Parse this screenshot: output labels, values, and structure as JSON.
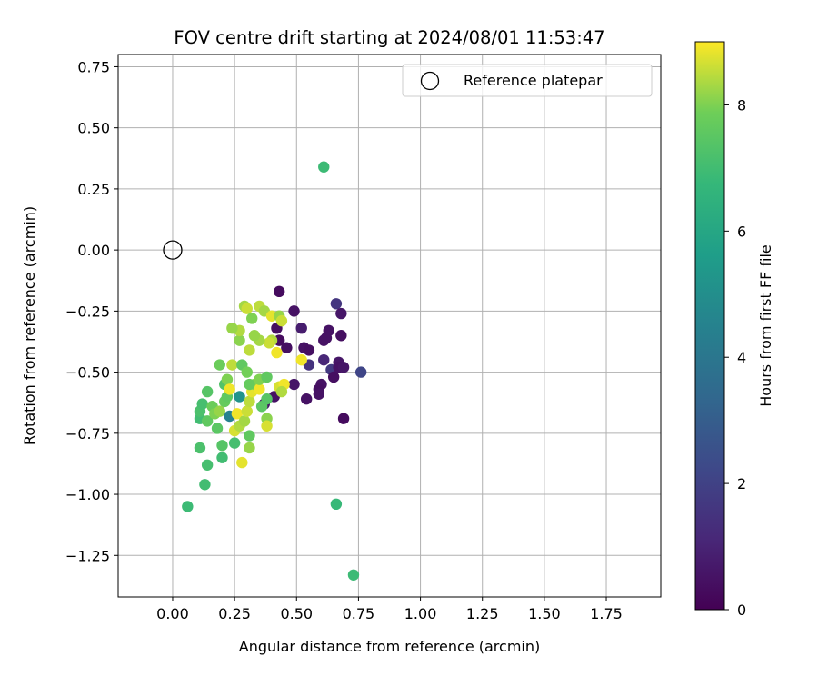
{
  "chart_data": {
    "type": "scatter",
    "title": "FOV centre drift starting at 2024/08/01 11:53:47",
    "xlabel": "Angular distance from reference (arcmin)",
    "ylabel": "Rotation from reference (arcmin)",
    "xlim": [
      -0.22,
      1.97
    ],
    "ylim": [
      -1.42,
      0.8
    ],
    "xticks": [
      0.0,
      0.25,
      0.5,
      0.75,
      1.0,
      1.25,
      1.5,
      1.75
    ],
    "xtick_labels": [
      "0.00",
      "0.25",
      "0.50",
      "0.75",
      "1.00",
      "1.25",
      "1.50",
      "1.75"
    ],
    "yticks": [
      0.75,
      0.5,
      0.25,
      0.0,
      -0.25,
      -0.5,
      -0.75,
      -1.0,
      -1.25
    ],
    "ytick_labels": [
      "0.75",
      "0.50",
      "0.25",
      "0.00",
      "−0.25",
      "−0.50",
      "−0.75",
      "−1.00",
      "−1.25"
    ],
    "grid": true,
    "legend": {
      "position": "top-right",
      "entries": [
        "Reference platepar"
      ]
    },
    "reference_point": {
      "x": 0.0,
      "y": 0.0,
      "label": "Reference platepar"
    },
    "colorbar": {
      "label": "Hours from first FF file",
      "range": [
        0,
        9
      ],
      "ticks": [
        0,
        2,
        4,
        6,
        8
      ],
      "tick_labels": [
        "0",
        "2",
        "4",
        "6",
        "8"
      ],
      "colormap": "viridis"
    },
    "points": [
      [
        0.43,
        -0.17,
        0.3
      ],
      [
        0.49,
        -0.25,
        0.5
      ],
      [
        0.66,
        -0.22,
        1.6
      ],
      [
        0.68,
        -0.26,
        0.6
      ],
      [
        0.42,
        -0.32,
        0.4
      ],
      [
        0.52,
        -0.32,
        0.8
      ],
      [
        0.63,
        -0.33,
        0.5
      ],
      [
        0.68,
        -0.35,
        0.4
      ],
      [
        0.61,
        -0.37,
        0.5
      ],
      [
        0.62,
        -0.36,
        0.5
      ],
      [
        0.43,
        -0.37,
        0.3
      ],
      [
        0.46,
        -0.4,
        0.4
      ],
      [
        0.53,
        -0.4,
        0.5
      ],
      [
        0.55,
        -0.41,
        0.4
      ],
      [
        0.61,
        -0.45,
        1.1
      ],
      [
        0.55,
        -0.47,
        1.5
      ],
      [
        0.64,
        -0.49,
        1.7
      ],
      [
        0.67,
        -0.46,
        0.6
      ],
      [
        0.67,
        -0.48,
        0.5
      ],
      [
        0.69,
        -0.48,
        0.6
      ],
      [
        0.76,
        -0.5,
        2.1
      ],
      [
        0.65,
        -0.52,
        0.4
      ],
      [
        0.6,
        -0.55,
        0.5
      ],
      [
        0.59,
        -0.57,
        0.4
      ],
      [
        0.59,
        -0.59,
        0.5
      ],
      [
        0.54,
        -0.61,
        0.5
      ],
      [
        0.49,
        -0.55,
        0.6
      ],
      [
        0.41,
        -0.6,
        0.5
      ],
      [
        0.37,
        -0.63,
        0.6
      ],
      [
        0.69,
        -0.69,
        0.3
      ],
      [
        0.61,
        0.34,
        6.9
      ],
      [
        0.66,
        -1.04,
        6.8
      ],
      [
        0.73,
        -1.33,
        6.9
      ],
      [
        0.06,
        -1.05,
        6.9
      ],
      [
        0.13,
        -0.96,
        7.0
      ],
      [
        0.14,
        -0.88,
        7.1
      ],
      [
        0.11,
        -0.81,
        7.2
      ],
      [
        0.2,
        -0.85,
        7.0
      ],
      [
        0.2,
        -0.8,
        7.4
      ],
      [
        0.25,
        -0.79,
        7.1
      ],
      [
        0.31,
        -0.81,
        8.2
      ],
      [
        0.31,
        -0.76,
        7.6
      ],
      [
        0.28,
        -0.87,
        8.8
      ],
      [
        0.27,
        -0.6,
        5.2
      ],
      [
        0.23,
        -0.68,
        4.5
      ],
      [
        0.18,
        -0.73,
        7.5
      ],
      [
        0.11,
        -0.69,
        7.0
      ],
      [
        0.11,
        -0.66,
        7.2
      ],
      [
        0.12,
        -0.63,
        7.1
      ],
      [
        0.14,
        -0.58,
        7.4
      ],
      [
        0.14,
        -0.7,
        7.6
      ],
      [
        0.16,
        -0.64,
        7.8
      ],
      [
        0.17,
        -0.67,
        8.0
      ],
      [
        0.19,
        -0.66,
        8.2
      ],
      [
        0.21,
        -0.62,
        7.7
      ],
      [
        0.22,
        -0.6,
        7.6
      ],
      [
        0.21,
        -0.55,
        7.3
      ],
      [
        0.22,
        -0.53,
        8.0
      ],
      [
        0.19,
        -0.47,
        7.8
      ],
      [
        0.24,
        -0.47,
        8.5
      ],
      [
        0.23,
        -0.57,
        8.9
      ],
      [
        0.26,
        -0.67,
        8.9
      ],
      [
        0.25,
        -0.74,
        8.7
      ],
      [
        0.27,
        -0.72,
        8.4
      ],
      [
        0.29,
        -0.7,
        8.3
      ],
      [
        0.3,
        -0.66,
        8.6
      ],
      [
        0.31,
        -0.62,
        8.5
      ],
      [
        0.32,
        -0.58,
        8.8
      ],
      [
        0.33,
        -0.55,
        8.1
      ],
      [
        0.35,
        -0.57,
        8.9
      ],
      [
        0.35,
        -0.53,
        8.0
      ],
      [
        0.28,
        -0.47,
        7.6
      ],
      [
        0.3,
        -0.5,
        7.9
      ],
      [
        0.31,
        -0.55,
        7.7
      ],
      [
        0.36,
        -0.64,
        7.5
      ],
      [
        0.38,
        -0.61,
        7.4
      ],
      [
        0.38,
        -0.69,
        8.1
      ],
      [
        0.38,
        -0.72,
        8.7
      ],
      [
        0.38,
        -0.52,
        7.6
      ],
      [
        0.4,
        -0.37,
        8.4
      ],
      [
        0.42,
        -0.42,
        8.9
      ],
      [
        0.39,
        -0.38,
        8.6
      ],
      [
        0.35,
        -0.37,
        8.3
      ],
      [
        0.33,
        -0.35,
        8.2
      ],
      [
        0.31,
        -0.41,
        8.5
      ],
      [
        0.27,
        -0.37,
        8.1
      ],
      [
        0.27,
        -0.33,
        8.4
      ],
      [
        0.24,
        -0.32,
        8.2
      ],
      [
        0.29,
        -0.23,
        8.3
      ],
      [
        0.3,
        -0.24,
        8.6
      ],
      [
        0.32,
        -0.28,
        8.0
      ],
      [
        0.35,
        -0.23,
        8.5
      ],
      [
        0.37,
        -0.25,
        8.3
      ],
      [
        0.4,
        -0.27,
        8.8
      ],
      [
        0.43,
        -0.27,
        8.2
      ],
      [
        0.44,
        -0.29,
        8.6
      ],
      [
        0.43,
        -0.56,
        8.7
      ],
      [
        0.45,
        -0.55,
        8.9
      ],
      [
        0.44,
        -0.58,
        8.4
      ],
      [
        0.52,
        -0.45,
        8.9
      ]
    ]
  }
}
